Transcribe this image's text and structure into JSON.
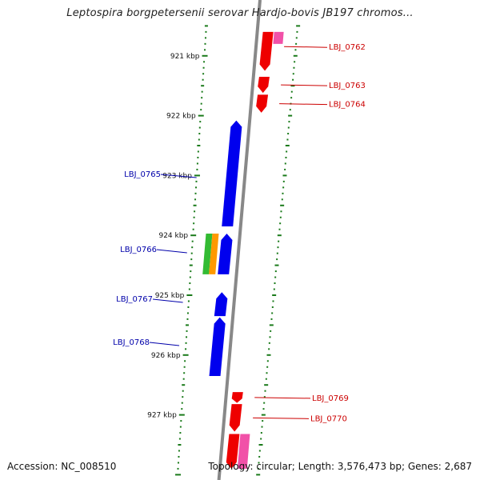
{
  "title": "Leptospira borgpetersenii serovar Hardjo-bovis JB197 chromos...",
  "accession": "Accession: NC_008510",
  "summary": "Topology: circular; Length: 3,576,473 bp; Genes: 2,687",
  "colors": {
    "axis": "#888888",
    "ticks": "#1a7a1a",
    "forward_gene": "#ee0000",
    "forward_label": "#cc0000",
    "reverse_gene": "#0000ee",
    "reverse_label": "#0000aa",
    "pink_feature": "#ee3399",
    "green_feature": "#33bb33",
    "orange_feature": "#ff9900"
  },
  "kbp_labels": [
    "921 kbp",
    "922 kbp",
    "923 kbp",
    "924 kbp",
    "925 kbp",
    "926 kbp",
    "927 kbp"
  ],
  "forward_genes": [
    {
      "label": "LBJ_0762",
      "start_kbp": 920.6,
      "end_kbp": 921.25
    },
    {
      "label": "LBJ_0763",
      "start_kbp": 921.35,
      "end_kbp": 921.62
    },
    {
      "label": "LBJ_0764",
      "start_kbp": 921.65,
      "end_kbp": 921.95
    },
    {
      "label": "LBJ_0769",
      "start_kbp": 926.62,
      "end_kbp": 926.8
    },
    {
      "label": "LBJ_0770",
      "start_kbp": 926.82,
      "end_kbp": 927.28
    },
    {
      "label": "",
      "start_kbp": 927.32,
      "end_kbp": 927.9
    }
  ],
  "reverse_genes": [
    {
      "label": "LBJ_0765",
      "start_kbp": 922.08,
      "end_kbp": 923.85
    },
    {
      "label": "LBJ_0766",
      "start_kbp": 923.97,
      "end_kbp": 924.65
    },
    {
      "label": "LBJ_0767",
      "start_kbp": 924.95,
      "end_kbp": 925.35
    },
    {
      "label": "LBJ_0768",
      "start_kbp": 925.37,
      "end_kbp": 926.35
    }
  ],
  "pink_features": [
    {
      "start_kbp": 920.6,
      "end_kbp": 920.8
    },
    {
      "start_kbp": 927.32,
      "end_kbp": 927.9
    }
  ],
  "inner_features": [
    {
      "color": "green",
      "start_kbp": 923.97,
      "end_kbp": 924.65
    },
    {
      "color": "orange",
      "start_kbp": 923.97,
      "end_kbp": 924.65
    }
  ]
}
